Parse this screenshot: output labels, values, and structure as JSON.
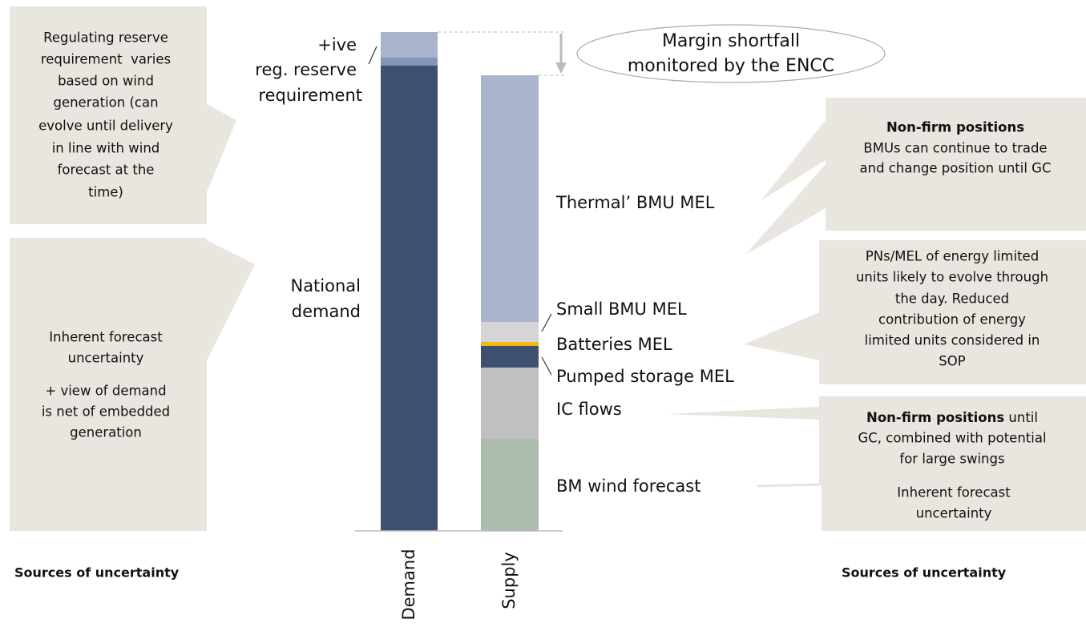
{
  "left_boxes": [
    {
      "lines": [
        "Regulating reserve",
        "requirement  varies",
        "based on wind",
        "generation (can",
        "evolve until delivery",
        "in line with wind",
        "forecast at the",
        "time)"
      ]
    },
    {
      "lines": [
        "Inherent forecast",
        "uncertainty"
      ],
      "lines2": [
        "+ view of demand",
        "is net of embedded",
        "generation"
      ]
    }
  ],
  "sources_left": "Sources of uncertainty",
  "sources_right": "Sources of uncertainty",
  "callout": {
    "lines": [
      "Margin shortfall",
      "monitored by the ENCC"
    ]
  },
  "demand_labels": {
    "reserve": [
      "+ive",
      "reg. reserve",
      "requirement"
    ],
    "national": [
      "National",
      "demand"
    ]
  },
  "supply_labels": [
    "Thermal’ BMU MEL",
    "Small BMU MEL",
    "Batteries MEL",
    "Pumped storage MEL",
    "IC flows",
    "BM wind forecast"
  ],
  "x_labels": [
    "Demand",
    "Supply"
  ],
  "right_boxes": [
    {
      "bold": "Non-firm positions",
      "lines": [
        "BMUs can continue to trade",
        "and change position until GC"
      ]
    },
    {
      "lines": [
        "PNs/MEL of energy limited",
        "units likely to evolve through",
        "the day. Reduced",
        "contribution of energy",
        "limited units considered in",
        "SOP"
      ]
    },
    {
      "bold": "Non-firm positions",
      "rest": " until",
      "lines": [
        "GC, combined with potential",
        "for large swings"
      ]
    },
    {
      "lines": [
        "Inherent forecast",
        "uncertainty"
      ]
    }
  ]
}
